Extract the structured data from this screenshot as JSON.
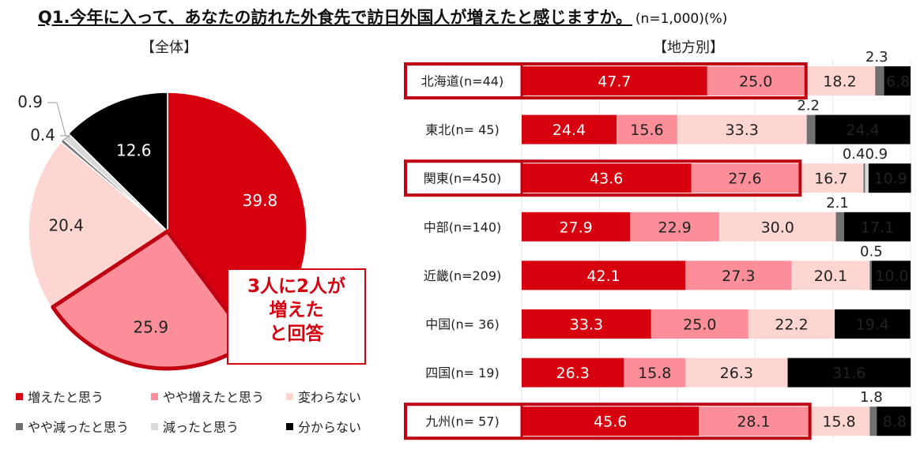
{
  "title": {
    "question": "Q1.今年に入って、あなたの訪れた外食先で訪日外国人が増えたと感じますか。",
    "note": "(n=1,000)(%)"
  },
  "labels": {
    "overall": "【全体】",
    "regional": "【地方別】"
  },
  "callout": {
    "line1": "3人に2人が",
    "line2": "増えた",
    "line3": "と回答"
  },
  "colors": {
    "increased": "#d7000f",
    "slightly_increased": "#fb8e98",
    "unchanged": "#fdd6d2",
    "slightly_decreased": "#707070",
    "decreased": "#d9d9d9",
    "unknown": "#000000",
    "highlight": "#c00010"
  },
  "legend": [
    {
      "key": "increased",
      "label": "増えたと思う",
      "color": "#d7000f"
    },
    {
      "key": "slightly_increased",
      "label": "やや増えたと思う",
      "color": "#fb8e98"
    },
    {
      "key": "unchanged",
      "label": "変わらない",
      "color": "#fdd6d2"
    },
    {
      "key": "slightly_decreased",
      "label": "やや減ったと思う",
      "color": "#707070"
    },
    {
      "key": "decreased",
      "label": "減ったと思う",
      "color": "#d9d9d9"
    },
    {
      "key": "unknown",
      "label": "分からない",
      "color": "#000000"
    }
  ],
  "chart_data": [
    {
      "type": "pie",
      "title": "【全体】",
      "categories": [
        "増えたと思う",
        "やや増えたと思う",
        "変わらない",
        "やや減ったと思う",
        "減ったと思う",
        "分からない"
      ],
      "values": [
        39.8,
        25.9,
        20.4,
        0.4,
        0.9,
        12.6
      ],
      "value_labels": [
        "39.8",
        "25.9",
        "20.4",
        "0.4",
        "0.9",
        "12.6"
      ]
    },
    {
      "type": "bar",
      "orientation": "horizontal-stacked",
      "title": "【地方別】",
      "categories": [
        "北海道(n=44)",
        "東北(n= 45)",
        "関東(n=450)",
        "中部(n=140)",
        "近畿(n=209)",
        "中国(n= 36)",
        "四国(n= 19)",
        "九州(n= 57)"
      ],
      "highlighted": [
        true,
        false,
        true,
        false,
        false,
        false,
        false,
        true
      ],
      "xlim": [
        0,
        100
      ],
      "series": [
        {
          "name": "増えたと思う",
          "values": [
            47.7,
            24.4,
            43.6,
            27.9,
            42.1,
            33.3,
            26.3,
            45.6
          ]
        },
        {
          "name": "やや増えたと思う",
          "values": [
            25.0,
            15.6,
            27.6,
            22.9,
            27.3,
            25.0,
            15.8,
            28.1
          ]
        },
        {
          "name": "変わらない",
          "values": [
            18.2,
            33.3,
            16.7,
            30.0,
            20.1,
            22.2,
            26.3,
            15.8
          ]
        },
        {
          "name": "やや減ったと思う",
          "values": [
            2.3,
            2.2,
            0.4,
            2.1,
            0.5,
            0,
            0,
            1.8
          ]
        },
        {
          "name": "減ったと思う",
          "values": [
            0,
            0,
            0.9,
            0,
            0,
            0,
            0,
            0
          ]
        },
        {
          "name": "分からない",
          "values": [
            6.8,
            24.4,
            10.9,
            17.1,
            10.0,
            19.4,
            31.6,
            8.8
          ]
        }
      ],
      "value_labels": [
        [
          "47.7",
          "25.0",
          "18.2",
          "2.3",
          "",
          "6.8"
        ],
        [
          "24.4",
          "15.6",
          "33.3",
          "2.2",
          "",
          "24.4"
        ],
        [
          "43.6",
          "27.6",
          "16.7",
          "0.4",
          "0.9",
          "10.9"
        ],
        [
          "27.9",
          "22.9",
          "30.0",
          "2.1",
          "",
          "17.1"
        ],
        [
          "42.1",
          "27.3",
          "20.1",
          "0.5",
          "",
          "10.0"
        ],
        [
          "33.3",
          "25.0",
          "22.2",
          "",
          "",
          "19.4"
        ],
        [
          "26.3",
          "15.8",
          "26.3",
          "",
          "",
          "31.6"
        ],
        [
          "45.6",
          "28.1",
          "15.8",
          "1.8",
          "",
          "8.8"
        ]
      ]
    }
  ]
}
